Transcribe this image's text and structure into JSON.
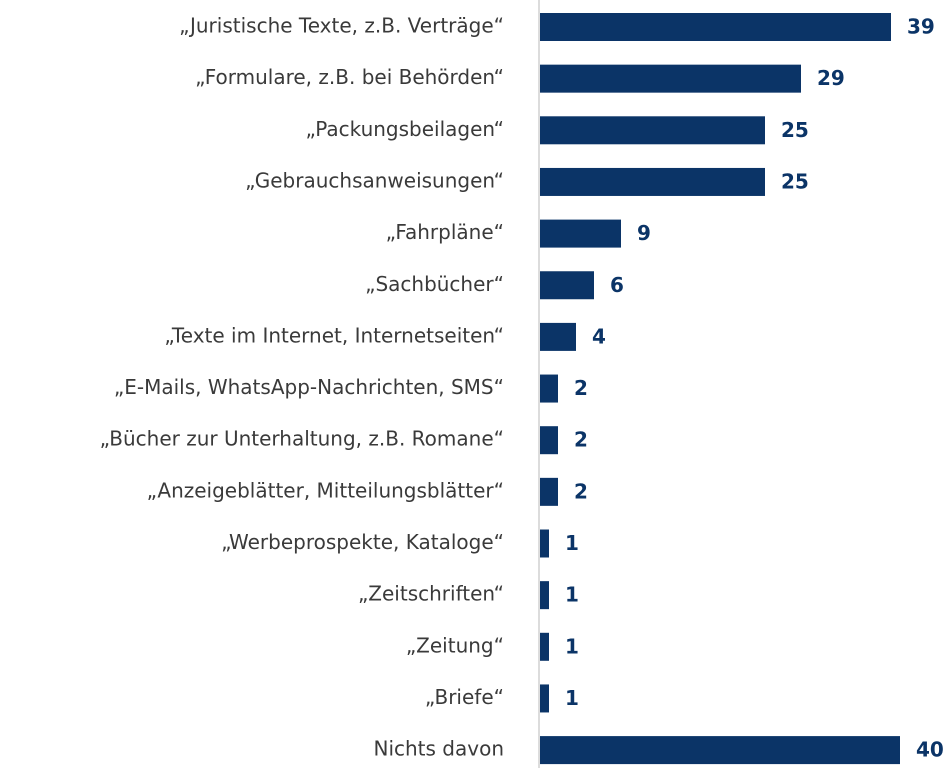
{
  "chart_data": {
    "type": "bar",
    "orientation": "horizontal",
    "categories": [
      "„Juristische Texte, z.B. Verträge“",
      "„Formulare, z.B. bei Behörden“",
      "„Packungsbeilagen“",
      "„Gebrauchsanweisungen“",
      "„Fahrpläne“",
      "„Sachbücher“",
      "„Texte im Internet, Internetseiten“",
      "„E-Mails, WhatsApp-Nachrichten, SMS“",
      "„Bücher zur Unterhaltung, z.B. Romane“",
      "„Anzeigeblätter, Mitteilungsblätter“",
      "„Werbeprospekte, Kataloge“",
      "„Zeitschriften“",
      "„Zeitung“",
      "„Briefe“",
      "Nichts davon"
    ],
    "values": [
      39,
      29,
      25,
      25,
      9,
      6,
      4,
      2,
      2,
      2,
      1,
      1,
      1,
      1,
      40
    ],
    "color": "#0b3467"
  }
}
